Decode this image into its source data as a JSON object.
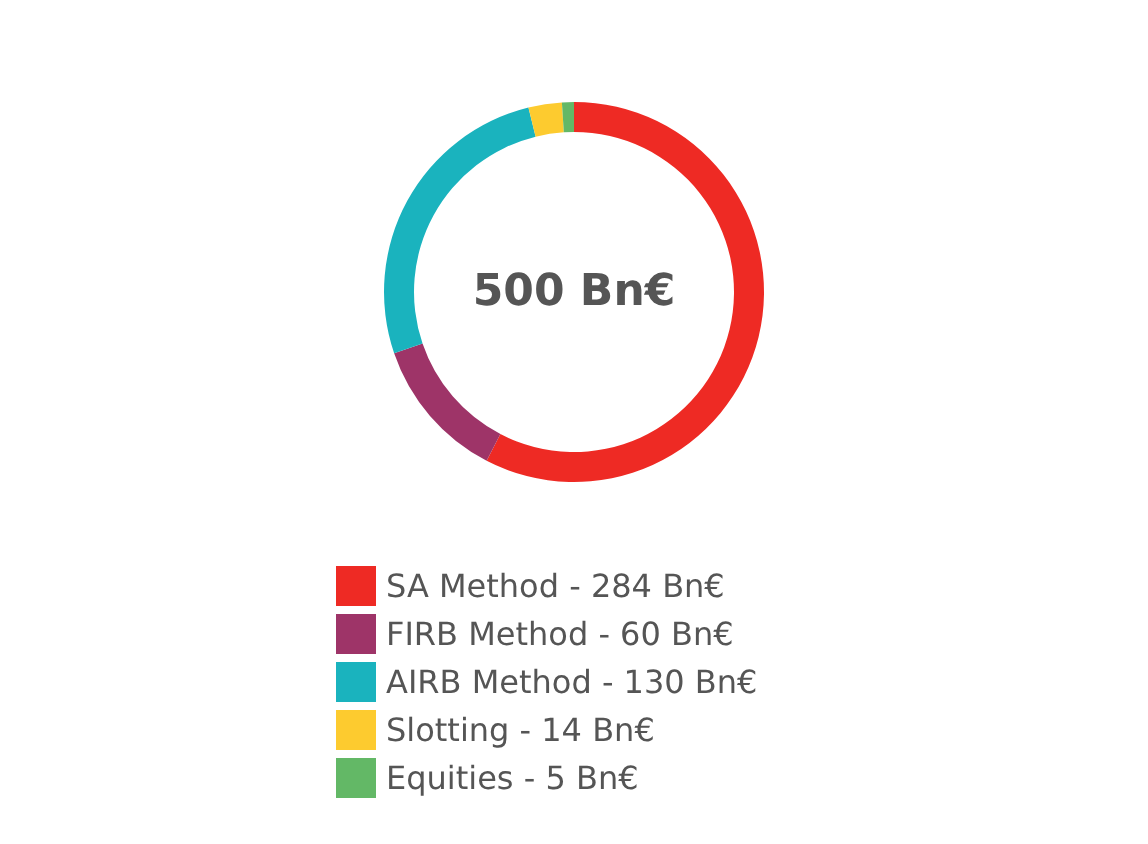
{
  "chart_data": {
    "type": "donut",
    "categories": [
      "SA Method",
      "FIRB Method",
      "AIRB Method",
      "Slotting",
      "Equities"
    ],
    "values": [
      284,
      60,
      130,
      14,
      5
    ],
    "value_labels": [
      "284 Bn€",
      "60 Bn€",
      "130 Bn€",
      "14 Bn€",
      "5 Bn€"
    ],
    "colors": [
      "#ee2a24",
      "#9e3468",
      "#1ab3be",
      "#fdcb2f",
      "#63b866"
    ],
    "annotations": [
      "500 Bn€"
    ],
    "legend": "bottom"
  }
}
